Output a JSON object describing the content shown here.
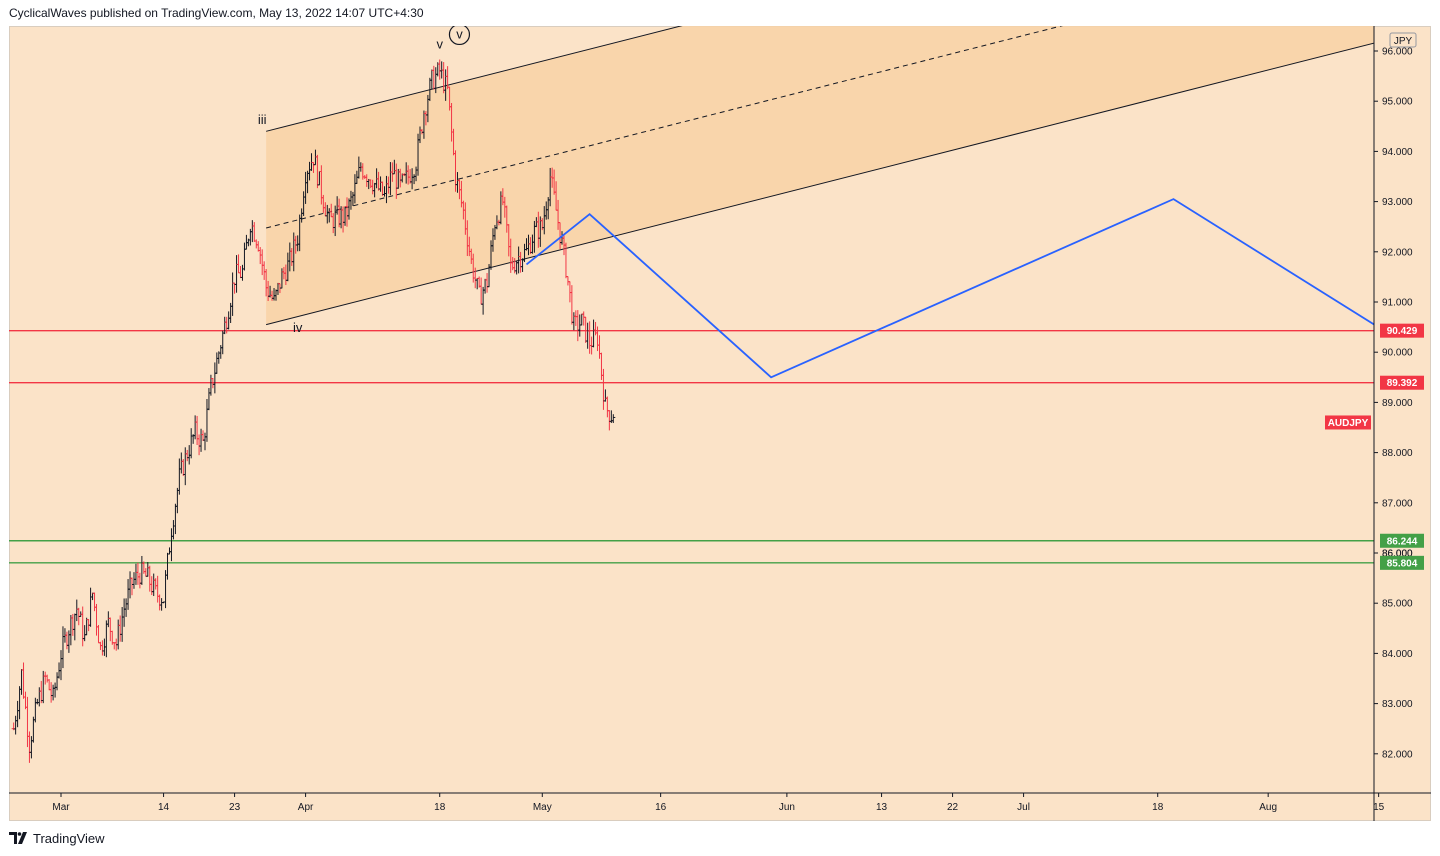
{
  "header": {
    "text": "CyclicalWaves published on TradingView.com, May 13, 2022 14:07 UTC+4:30"
  },
  "footer": {
    "brand": "TradingView"
  },
  "colors": {
    "background": "#fbe3c8",
    "channel_fill": "#f8d2a6",
    "resistance": "#f23645",
    "support": "#43a047",
    "projection": "#2962ff",
    "candle_up": "#131722",
    "candle_down": "#f23645"
  },
  "chart_data": {
    "type": "candlestick",
    "symbol": "AUDJPY",
    "currency": "JPY",
    "ylim": [
      81.3,
      96.5
    ],
    "y_ticks": [
      "82.000",
      "83.000",
      "84.000",
      "85.000",
      "86.000",
      "87.000",
      "88.000",
      "89.000",
      "90.000",
      "91.000",
      "92.000",
      "93.000",
      "94.000",
      "95.000",
      "96.000"
    ],
    "x_ticks": [
      {
        "label": "Mar",
        "day": 0
      },
      {
        "label": "14",
        "day": 13
      },
      {
        "label": "23",
        "day": 22
      },
      {
        "label": "Apr",
        "day": 31
      },
      {
        "label": "18",
        "day": 48
      },
      {
        "label": "May",
        "day": 61
      },
      {
        "label": "16",
        "day": 76
      },
      {
        "label": "Jun",
        "day": 92
      },
      {
        "label": "13",
        "day": 104
      },
      {
        "label": "22",
        "day": 113
      },
      {
        "label": "Jul",
        "day": 122
      },
      {
        "label": "18",
        "day": 139
      },
      {
        "label": "Aug",
        "day": 153
      },
      {
        "label": "15",
        "day": 167
      }
    ],
    "price_path": [
      [
        -6,
        82.5
      ],
      [
        -5,
        83.6
      ],
      [
        -4,
        82.2
      ],
      [
        -3,
        83.0
      ],
      [
        -2,
        83.5
      ],
      [
        -1,
        83.1
      ],
      [
        0,
        84.0
      ],
      [
        1,
        84.5
      ],
      [
        2,
        84.9
      ],
      [
        3,
        84.3
      ],
      [
        4,
        85.2
      ],
      [
        5,
        84.1
      ],
      [
        6,
        84.6
      ],
      [
        7,
        84.2
      ],
      [
        8,
        84.9
      ],
      [
        9,
        85.4
      ],
      [
        10,
        85.6
      ],
      [
        11,
        85.5
      ],
      [
        12,
        85.2
      ],
      [
        13,
        85.1
      ],
      [
        14,
        86.5
      ],
      [
        15,
        87.5
      ],
      [
        16,
        88.0
      ],
      [
        17,
        88.4
      ],
      [
        18,
        88.2
      ],
      [
        19,
        89.3
      ],
      [
        20,
        90.0
      ],
      [
        21,
        90.7
      ],
      [
        22,
        91.5
      ],
      [
        23,
        91.6
      ],
      [
        24,
        92.6
      ],
      [
        25,
        92.2
      ],
      [
        26,
        91.3
      ],
      [
        27,
        91.0
      ],
      [
        28,
        91.5
      ],
      [
        29,
        91.8
      ],
      [
        30,
        92.3
      ],
      [
        31,
        93.6
      ],
      [
        32,
        93.9
      ],
      [
        33,
        93.2
      ],
      [
        34,
        92.6
      ],
      [
        35,
        92.7
      ],
      [
        36,
        92.7
      ],
      [
        37,
        93.1
      ],
      [
        38,
        93.7
      ],
      [
        39,
        93.5
      ],
      [
        40,
        93.3
      ],
      [
        41,
        93.1
      ],
      [
        42,
        93.6
      ],
      [
        43,
        93.3
      ],
      [
        44,
        93.5
      ],
      [
        45,
        93.8
      ],
      [
        46,
        94.8
      ],
      [
        47,
        95.4
      ],
      [
        48,
        95.6
      ],
      [
        49,
        95.2
      ],
      [
        50,
        93.5
      ],
      [
        51,
        92.8
      ],
      [
        52,
        91.8
      ],
      [
        53,
        91.1
      ],
      [
        54,
        91.4
      ],
      [
        55,
        92.6
      ],
      [
        56,
        93.0
      ],
      [
        57,
        91.7
      ],
      [
        58,
        91.9
      ],
      [
        59,
        92.0
      ],
      [
        60,
        92.4
      ],
      [
        61,
        92.5
      ],
      [
        62,
        93.5
      ],
      [
        63,
        92.6
      ],
      [
        64,
        91.7
      ],
      [
        65,
        90.5
      ],
      [
        66,
        90.6
      ],
      [
        67,
        90.2
      ],
      [
        68,
        90.3
      ],
      [
        69,
        88.9
      ],
      [
        70,
        88.7
      ]
    ],
    "last_price": 88.7,
    "channel": {
      "lower_start": [
        26,
        90.55
      ],
      "lower_end": [
        175,
        96.5
      ],
      "upper_start": [
        26,
        94.4
      ],
      "upper_end": [
        175,
        100.35
      ],
      "fill_between": "lower-upper"
    },
    "levels": {
      "resistance": [
        90.429,
        89.392
      ],
      "support": [
        86.244,
        85.804
      ]
    },
    "level_labels": [
      "90.429",
      "89.392",
      "86.244",
      "85.804"
    ],
    "hidden_tick_label": "86.000",
    "symbol_tag": "AUDJPY",
    "projection": [
      [
        59,
        91.75
      ],
      [
        67,
        92.75
      ],
      [
        90,
        89.5
      ],
      [
        141,
        93.05
      ],
      [
        169.5,
        90.25
      ]
    ],
    "wave_labels": [
      {
        "text": "iii",
        "day": 25.5,
        "price": 94.55,
        "circled": false
      },
      {
        "text": "iv",
        "day": 30,
        "price": 90.4,
        "circled": false
      },
      {
        "text": "v",
        "day": 48,
        "price": 96.05,
        "circled": false
      },
      {
        "text": "v",
        "day": 50.5,
        "price": 96.25,
        "circled": true
      }
    ]
  }
}
